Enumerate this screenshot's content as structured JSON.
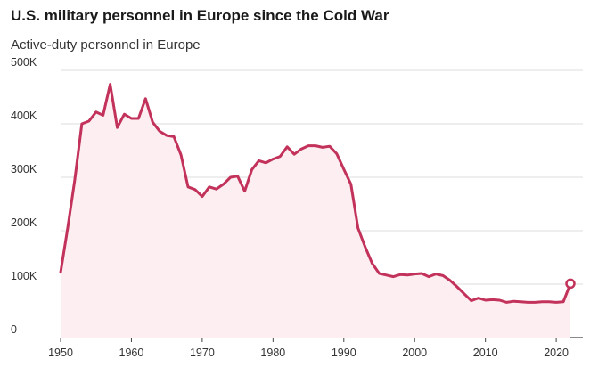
{
  "chart_data": {
    "type": "area",
    "title": "U.S. military personnel in Europe since the Cold War",
    "subtitle": "Active-duty personnel in Europe",
    "xlabel": "",
    "ylabel": "",
    "xlim": [
      1950,
      2022
    ],
    "ylim": [
      0,
      500000
    ],
    "x_ticks": [
      1950,
      1960,
      1970,
      1980,
      1990,
      2000,
      2010,
      2020
    ],
    "x_tick_labels": [
      "1950",
      "1960",
      "1970",
      "1980",
      "1990",
      "2000",
      "2010",
      "2020"
    ],
    "y_ticks": [
      0,
      100000,
      200000,
      300000,
      400000,
      500000
    ],
    "y_tick_labels": [
      "0",
      "100K",
      "200K",
      "300K",
      "400K",
      "500K"
    ],
    "grid": true,
    "series": [
      {
        "name": "Active-duty personnel in Europe",
        "color": "#c2325a",
        "fill": "#fdeef2",
        "x": [
          1950,
          1951,
          1952,
          1953,
          1954,
          1955,
          1956,
          1957,
          1958,
          1959,
          1960,
          1961,
          1962,
          1963,
          1964,
          1965,
          1966,
          1967,
          1968,
          1969,
          1970,
          1971,
          1972,
          1973,
          1974,
          1975,
          1976,
          1977,
          1978,
          1979,
          1980,
          1981,
          1982,
          1983,
          1984,
          1985,
          1986,
          1987,
          1988,
          1989,
          1990,
          1991,
          1992,
          1993,
          1994,
          1995,
          1996,
          1997,
          1998,
          1999,
          2000,
          2001,
          2002,
          2003,
          2004,
          2005,
          2006,
          2007,
          2008,
          2009,
          2010,
          2011,
          2012,
          2013,
          2014,
          2015,
          2016,
          2017,
          2018,
          2019,
          2020,
          2021,
          2022
        ],
        "values": [
          122000,
          205000,
          295000,
          400000,
          405000,
          422000,
          416000,
          474000,
          393000,
          418000,
          410000,
          410000,
          447000,
          403000,
          386000,
          378000,
          376000,
          342000,
          282000,
          277000,
          264000,
          282000,
          278000,
          287000,
          300000,
          302000,
          274000,
          314000,
          331000,
          327000,
          334000,
          339000,
          357000,
          343000,
          353000,
          359000,
          359000,
          356000,
          358000,
          344000,
          315000,
          287000,
          205000,
          170000,
          139000,
          120000,
          117000,
          114000,
          118000,
          117000,
          119000,
          120000,
          114000,
          119000,
          116000,
          107000,
          95000,
          82000,
          69000,
          74000,
          70000,
          71000,
          70000,
          66000,
          68000,
          67000,
          66000,
          66000,
          67000,
          67000,
          66000,
          67000,
          101000
        ]
      }
    ],
    "annotations": [
      {
        "type": "marker",
        "x": 2022,
        "y": 101000,
        "shape": "open-circle"
      }
    ]
  }
}
